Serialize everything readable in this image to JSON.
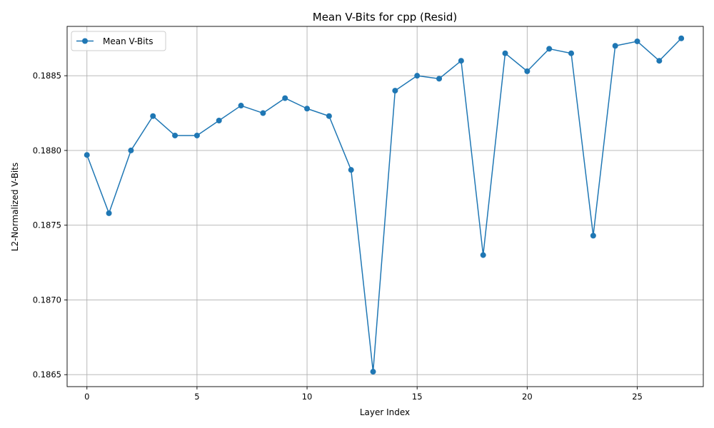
{
  "chart_data": {
    "type": "line",
    "title": "Mean V-Bits for cpp (Resid)",
    "xlabel": "Layer Index",
    "ylabel": "L2-Normalized V-Bits",
    "xlim": [
      -0.9,
      28.0
    ],
    "ylim": [
      0.18642,
      0.18883
    ],
    "xticks": [
      0,
      5,
      10,
      15,
      20,
      25
    ],
    "yticks": [
      0.1865,
      0.187,
      0.1875,
      0.188,
      0.1885
    ],
    "ytick_labels": [
      "0.1865",
      "0.1870",
      "0.1875",
      "0.1880",
      "0.1885"
    ],
    "grid": true,
    "legend": "upper-left",
    "series": [
      {
        "name": "Mean V-Bits",
        "color": "#1f77b4",
        "marker": "circle",
        "x": [
          0,
          1,
          2,
          3,
          4,
          5,
          6,
          7,
          8,
          9,
          10,
          11,
          12,
          13,
          14,
          15,
          16,
          17,
          18,
          19,
          20,
          21,
          22,
          23,
          24,
          25,
          26,
          27
        ],
        "y": [
          0.18797,
          0.18758,
          0.188,
          0.18823,
          0.1881,
          0.1881,
          0.1882,
          0.1883,
          0.18825,
          0.18835,
          0.18828,
          0.18823,
          0.18787,
          0.18652,
          0.1884,
          0.1885,
          0.18848,
          0.1886,
          0.1873,
          0.18865,
          0.18853,
          0.18868,
          0.18865,
          0.18743,
          0.1887,
          0.18873,
          0.1886,
          0.18875
        ]
      }
    ]
  }
}
